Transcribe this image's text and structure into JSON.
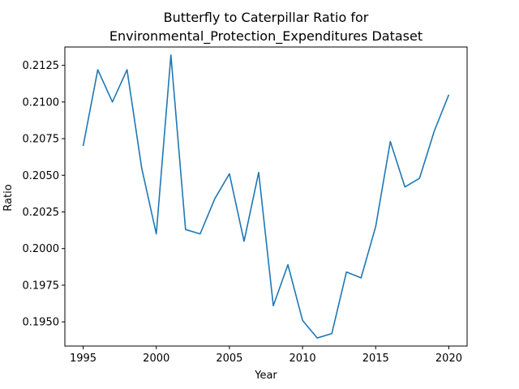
{
  "chart_data": {
    "type": "line",
    "title_lines": [
      "Butterfly to Caterpillar Ratio for",
      "Environmental_Protection_Expenditures Dataset"
    ],
    "xlabel": "Year",
    "ylabel": "Ratio",
    "xlim": [
      1993.75,
      2021.25
    ],
    "ylim": [
      0.19335,
      0.21375
    ],
    "xticks": [
      1995,
      2000,
      2005,
      2010,
      2015,
      2020
    ],
    "xtick_labels": [
      "1995",
      "2000",
      "2005",
      "2010",
      "2015",
      "2020"
    ],
    "yticks": [
      0.195,
      0.1975,
      0.2,
      0.2025,
      0.205,
      0.2075,
      0.21,
      0.2125
    ],
    "ytick_labels": [
      "0.1950",
      "0.1975",
      "0.2000",
      "0.2025",
      "0.2050",
      "0.2075",
      "0.2100",
      "0.2125"
    ],
    "grid": false,
    "series": [
      {
        "name": "Ratio",
        "color": "#1f77b4",
        "x": [
          1995,
          1996,
          1997,
          1998,
          1999,
          2000,
          2001,
          2002,
          2003,
          2004,
          2005,
          2006,
          2007,
          2008,
          2009,
          2010,
          2011,
          2012,
          2013,
          2014,
          2015,
          2016,
          2017,
          2018,
          2019,
          2020
        ],
        "values": [
          0.207,
          0.2122,
          0.21,
          0.2122,
          0.2055,
          0.201,
          0.2132,
          0.2013,
          0.201,
          0.2034,
          0.2051,
          0.2005,
          0.2052,
          0.1961,
          0.1989,
          0.1951,
          0.1939,
          0.1942,
          0.1984,
          0.198,
          0.2015,
          0.2073,
          0.2042,
          0.2048,
          0.208,
          0.2105
        ]
      }
    ]
  }
}
